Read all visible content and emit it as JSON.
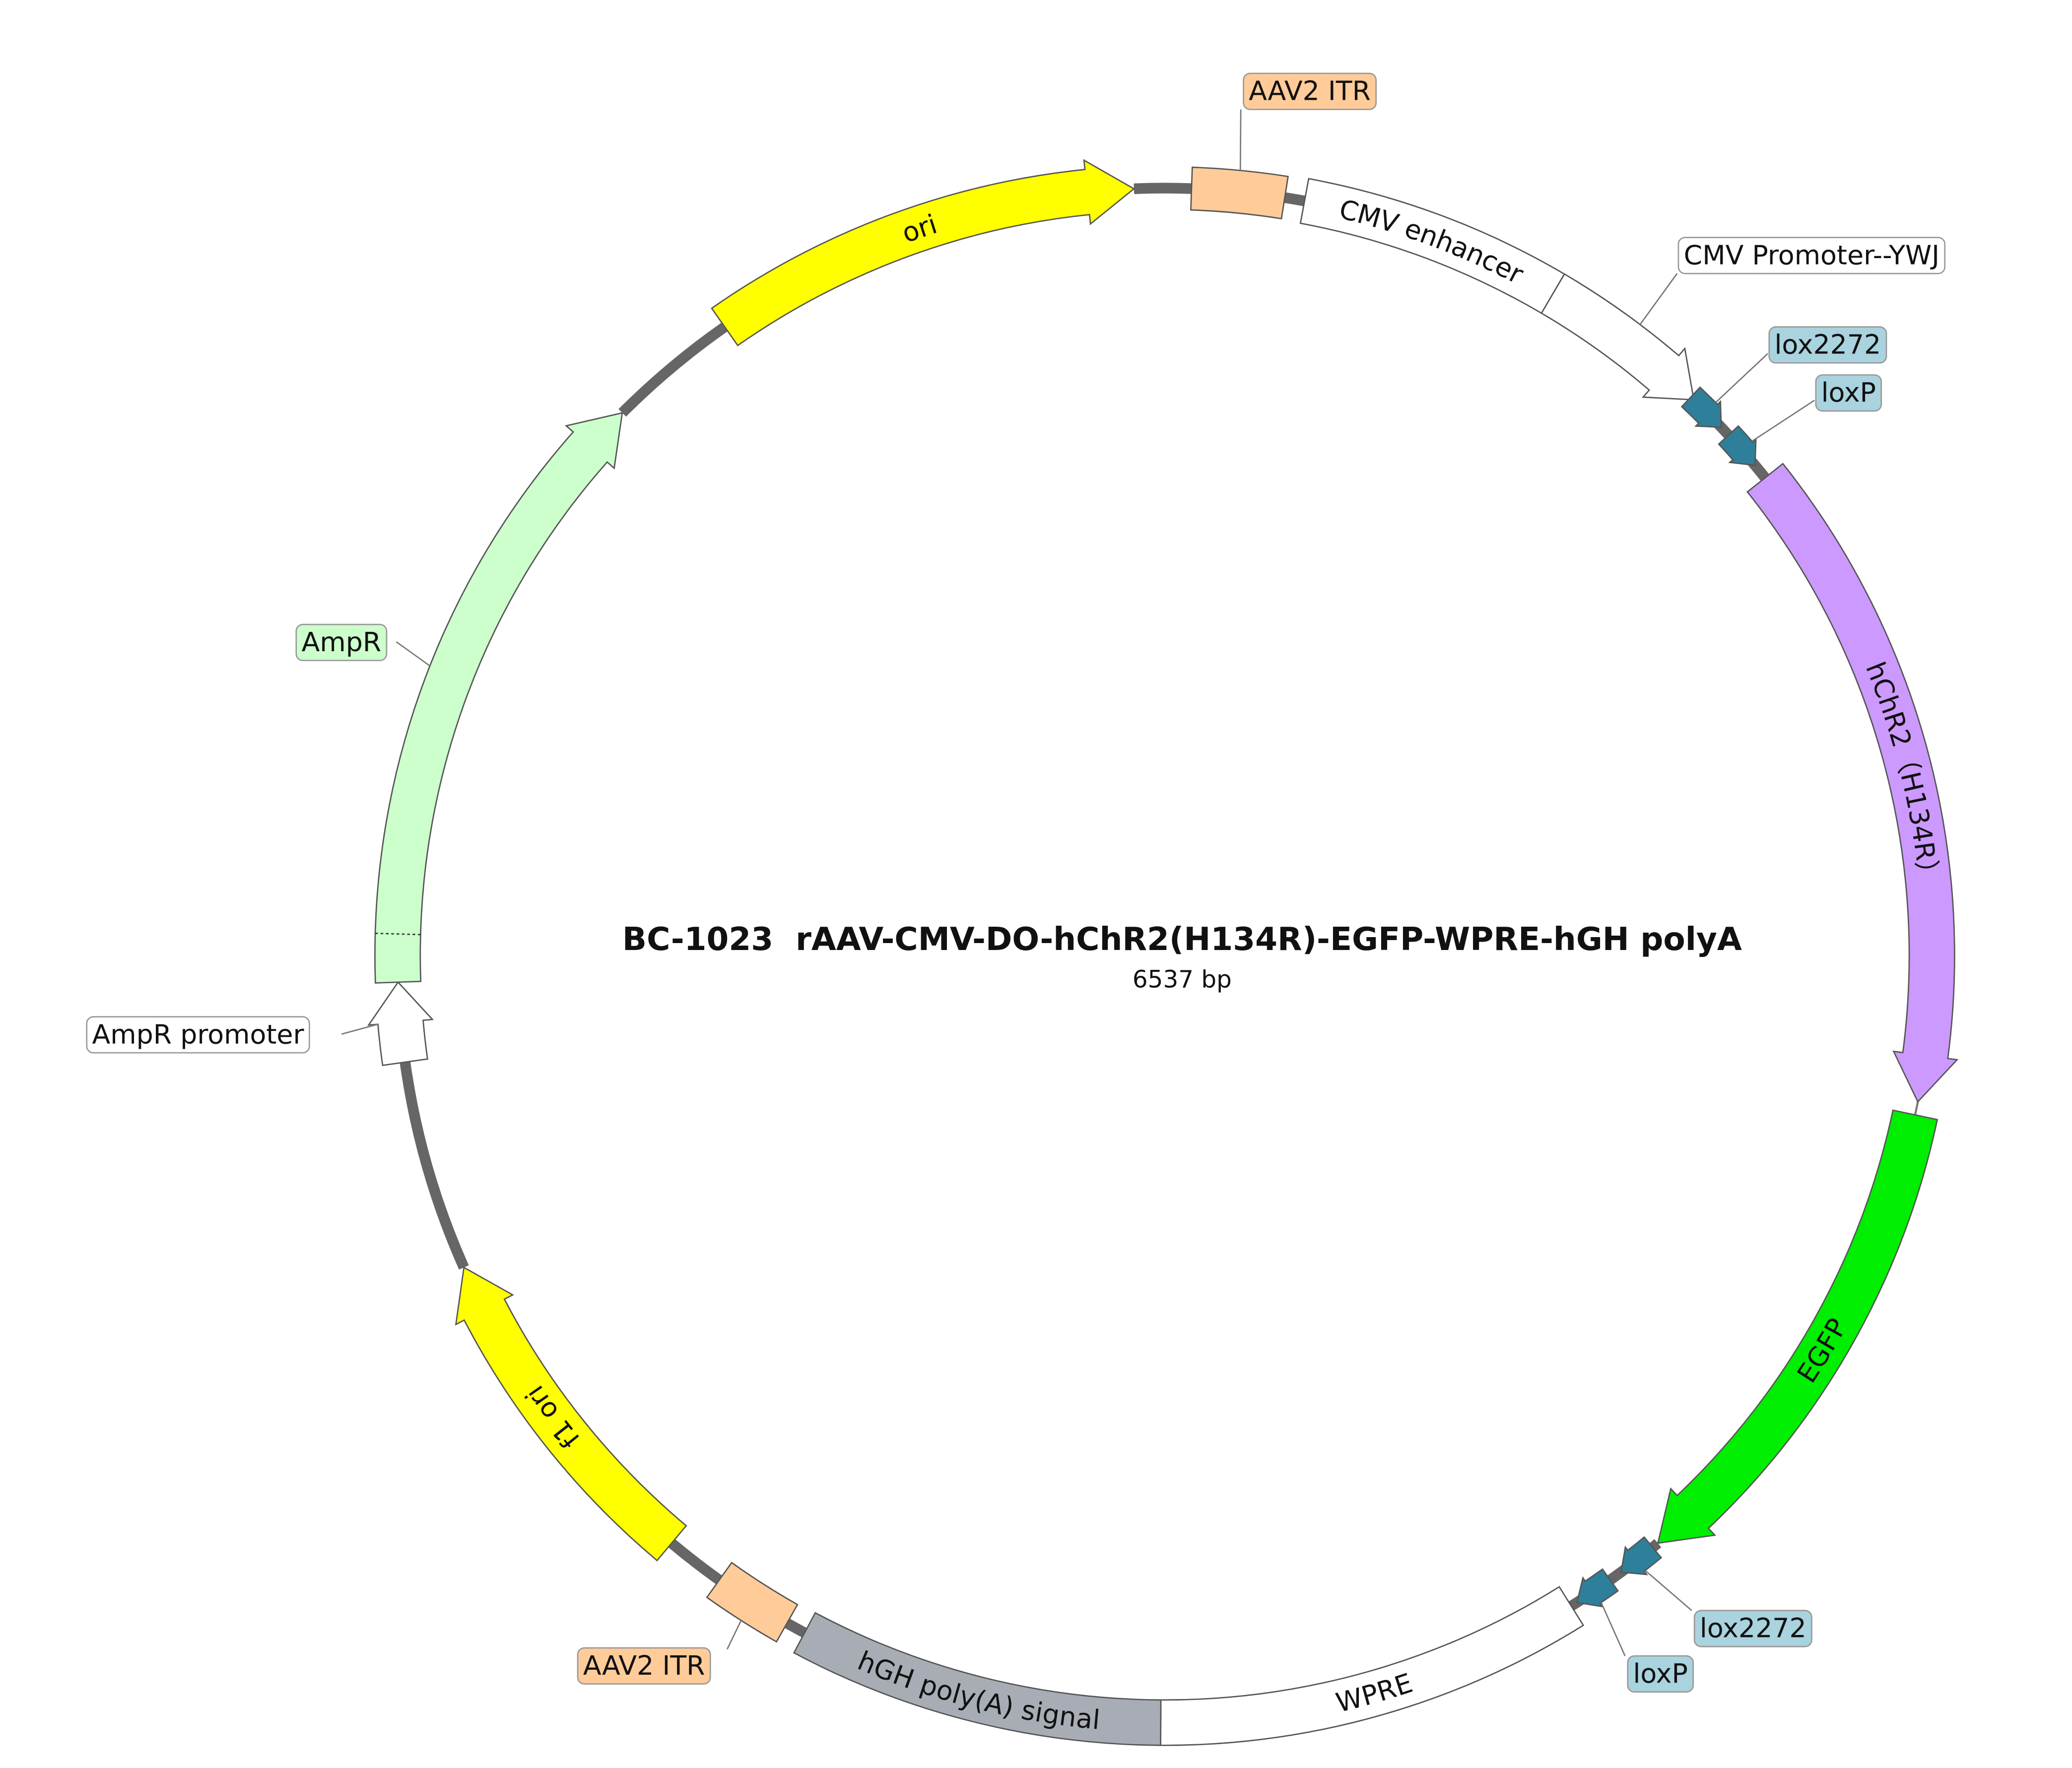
{
  "title": "BC-1023  rAAV-CMV-DO-hChR2(H134R)-EGFP-WPRE-hGH polyA",
  "length": "6537 bp",
  "features": [
    {
      "label": "ori"
    },
    {
      "label": "AAV2 ITR"
    },
    {
      "label": "CMV enhancer"
    },
    {
      "label": "CMV Promoter--YWJ"
    },
    {
      "label": "lox2272"
    },
    {
      "label": "loxP"
    },
    {
      "label": "hChR2（H134R）"
    },
    {
      "label": "EGFP"
    },
    {
      "label": "lox2272"
    },
    {
      "label": "loxP"
    },
    {
      "label": "WPRE"
    },
    {
      "label": "hGH poly(A) signal"
    },
    {
      "label": "AAV2 ITR"
    },
    {
      "label": "f1 ori"
    },
    {
      "label": "AmpR promoter"
    },
    {
      "label": "AmpR"
    }
  ]
}
